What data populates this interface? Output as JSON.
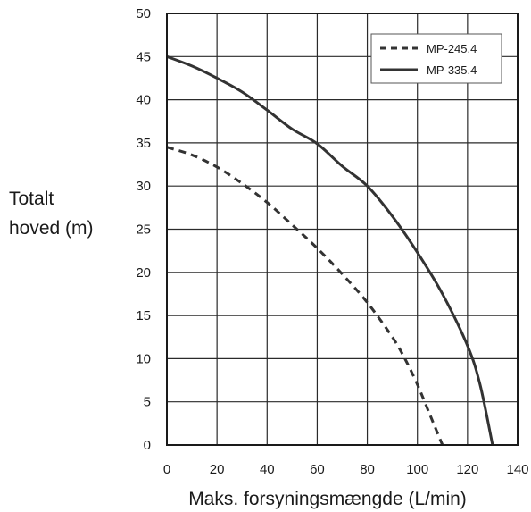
{
  "chart_data": {
    "type": "line",
    "title": "",
    "xlabel": "Maks. forsyningsmængde (L/min)",
    "ylabel_lines": [
      "Totalt",
      "hoved (m)"
    ],
    "xlim": [
      0,
      140
    ],
    "ylim": [
      0,
      50
    ],
    "x_ticks": [
      0,
      20,
      40,
      60,
      80,
      100,
      120,
      140
    ],
    "y_ticks": [
      0,
      5,
      10,
      15,
      20,
      25,
      30,
      35,
      40,
      45,
      50
    ],
    "grid": true,
    "legend_position": "top-right",
    "series": [
      {
        "name": "MP-245.4",
        "style": "dashed",
        "color": "#333333",
        "x": [
          0,
          10,
          20,
          30,
          40,
          50,
          60,
          70,
          80,
          90,
          95,
          100,
          105,
          110
        ],
        "y": [
          34.5,
          33.6,
          32.2,
          30.3,
          28.1,
          25.5,
          22.8,
          19.8,
          16.5,
          12.5,
          10.0,
          7.0,
          3.5,
          0
        ]
      },
      {
        "name": "MP-335.4",
        "style": "solid",
        "color": "#333333",
        "x": [
          0,
          10,
          20,
          30,
          40,
          50,
          60,
          70,
          80,
          90,
          100,
          110,
          120,
          125,
          130
        ],
        "y": [
          45,
          43.9,
          42.5,
          40.9,
          38.8,
          36.6,
          34.9,
          32.3,
          30.0,
          26.5,
          22.3,
          17.5,
          11.5,
          7.0,
          0
        ]
      }
    ]
  }
}
